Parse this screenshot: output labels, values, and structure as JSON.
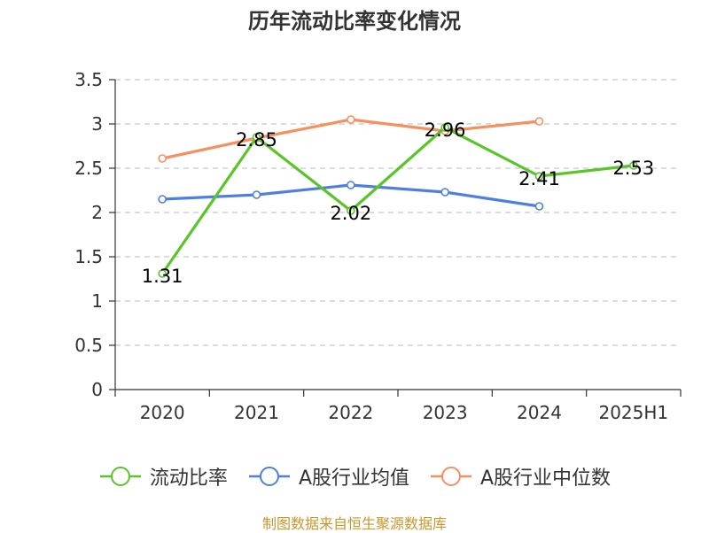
{
  "chart_data": {
    "type": "line",
    "title": "历年流动比率变化情况",
    "categories": [
      "2020",
      "2021",
      "2022",
      "2023",
      "2024",
      "2025H1"
    ],
    "ylim": [
      0,
      3.5
    ],
    "yticks": [
      "0",
      "0.5",
      "1",
      "1.5",
      "2",
      "2.5",
      "3",
      "3.5"
    ],
    "grid": true,
    "legend_position": "bottom",
    "series": [
      {
        "name": "流动比率",
        "color": "#5bc42a",
        "values": [
          1.31,
          2.85,
          2.02,
          2.96,
          2.41,
          2.53
        ],
        "labels": [
          "1.31",
          "2.85",
          "2.02",
          "2.96",
          "2.41",
          "2.53"
        ]
      },
      {
        "name": "A股行业均值",
        "color": "#4f7fde",
        "values": [
          2.15,
          2.2,
          2.31,
          2.23,
          2.07,
          null
        ]
      },
      {
        "name": "A股行业中位数",
        "color": "#f59060",
        "values": [
          2.61,
          2.84,
          3.05,
          2.92,
          3.03,
          null
        ]
      }
    ]
  },
  "source": "制图数据来自恒生聚源数据库"
}
